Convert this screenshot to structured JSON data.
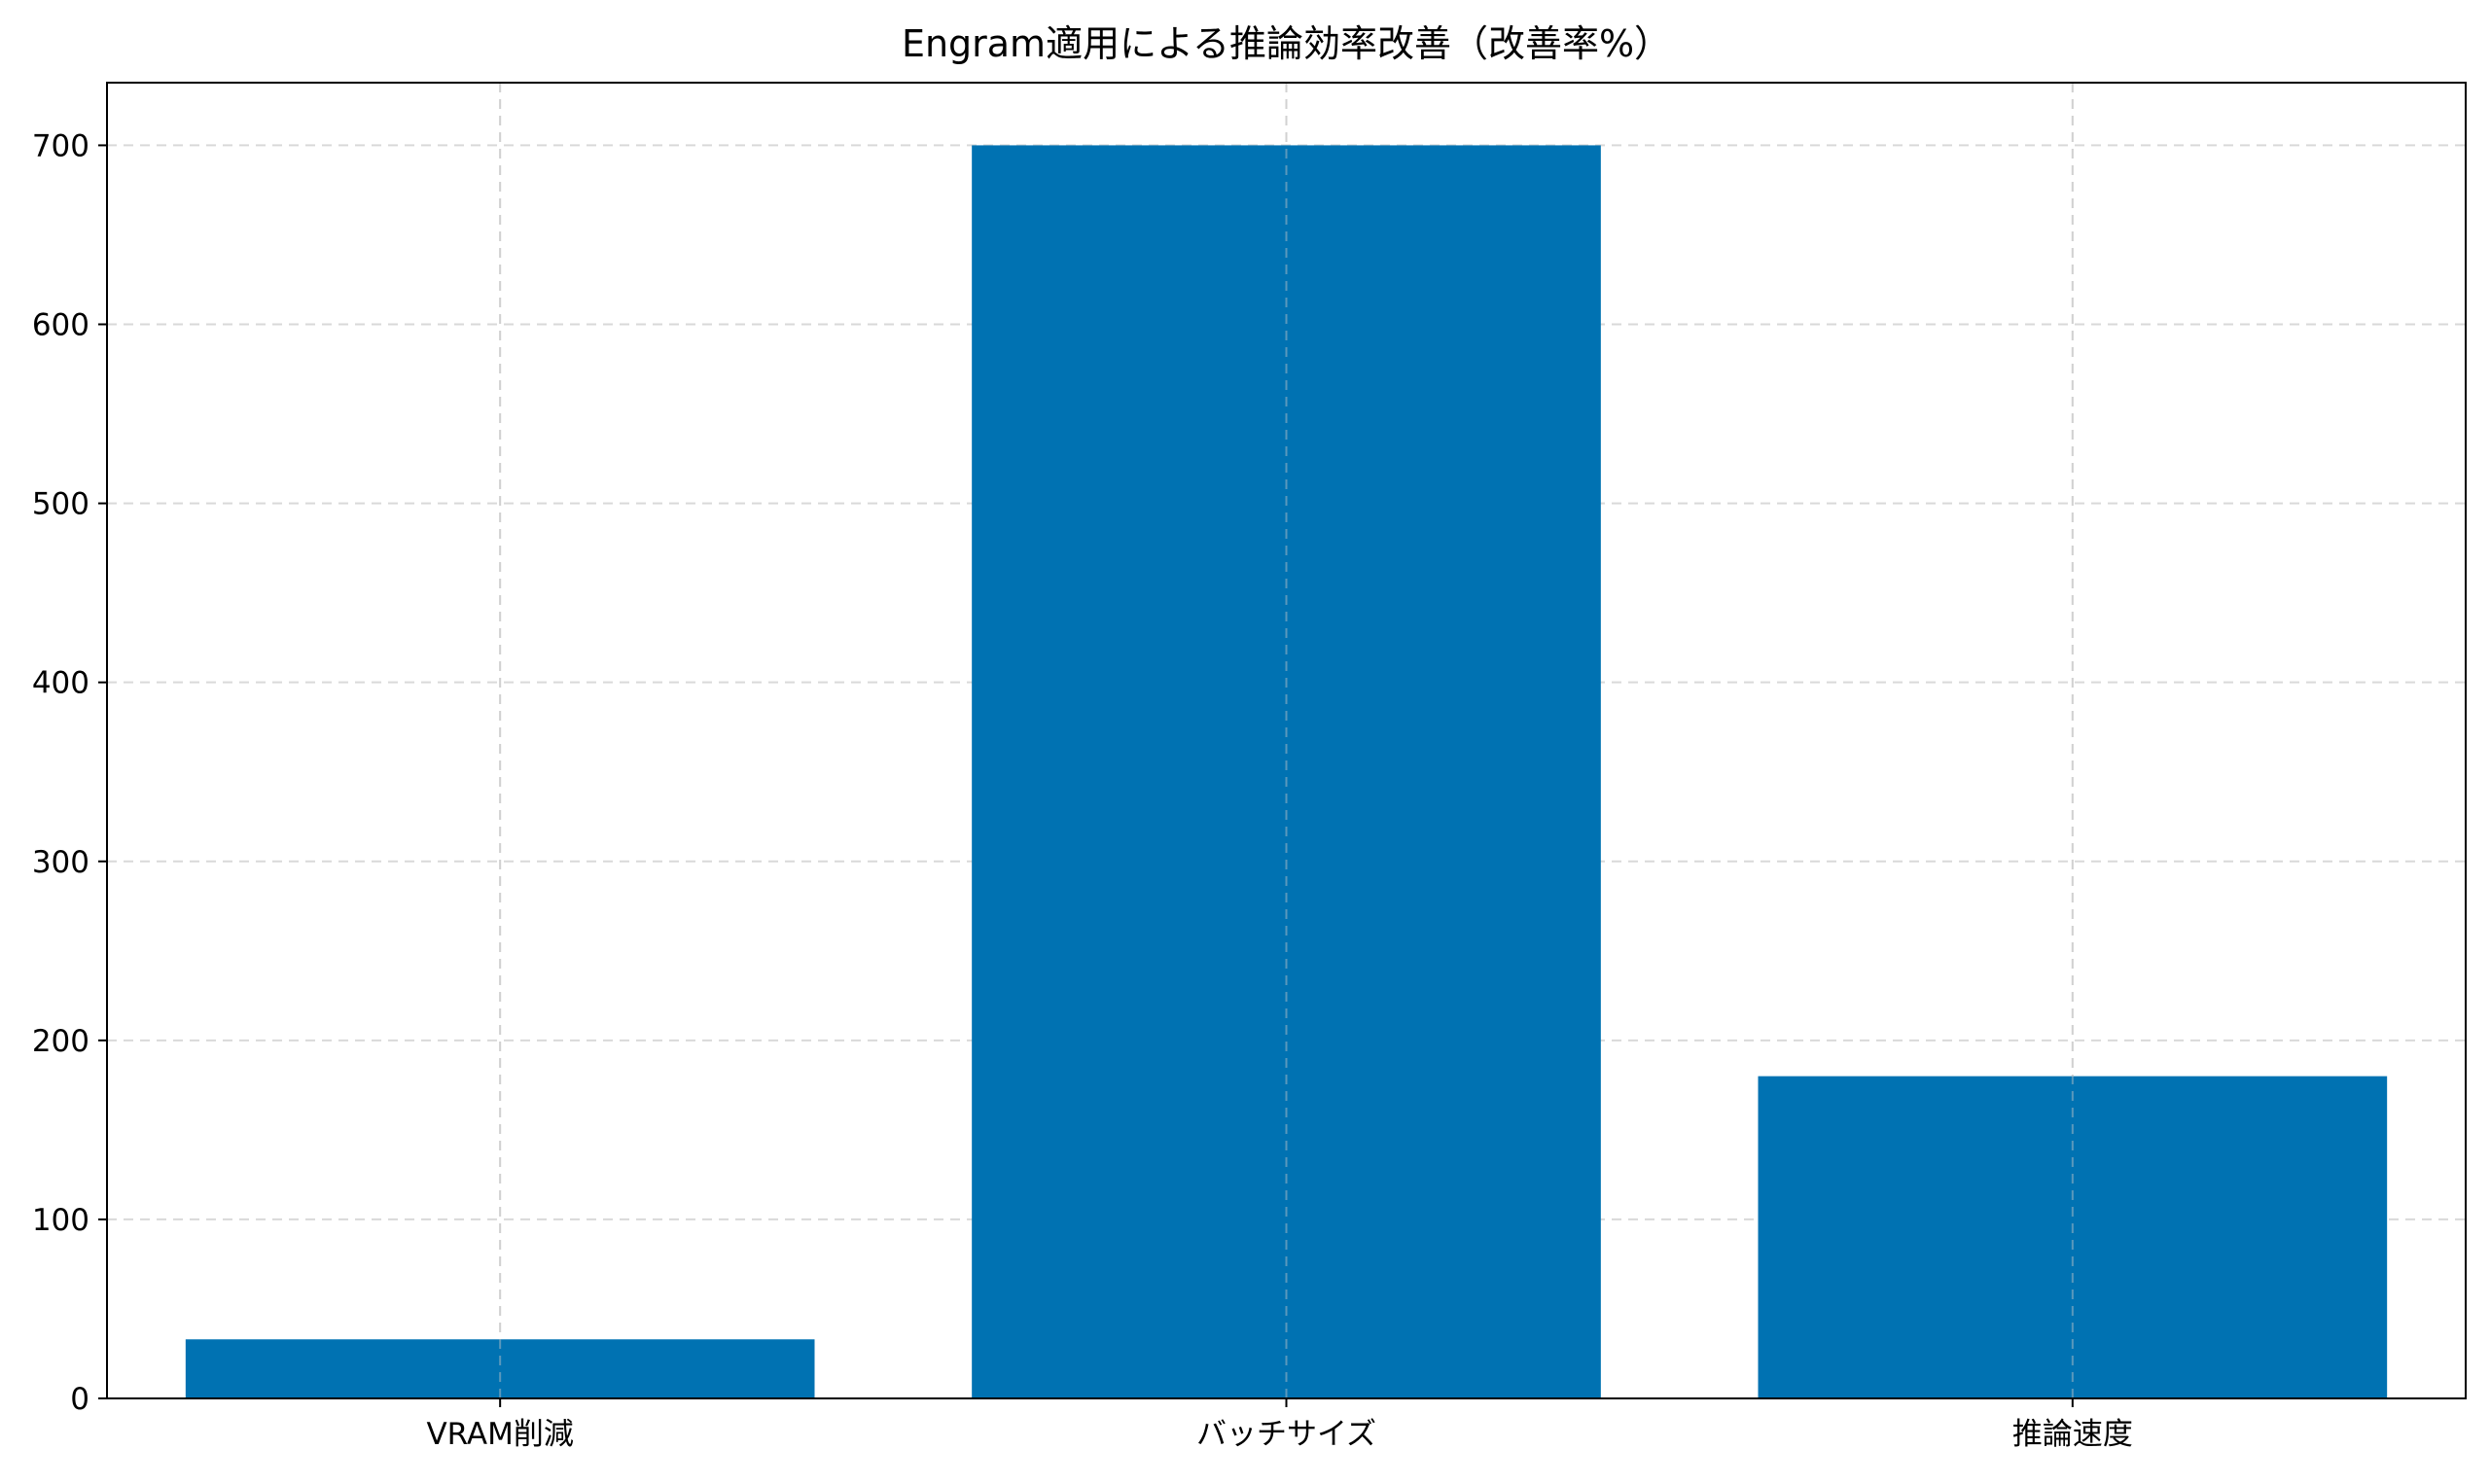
{
  "chart_data": {
    "type": "bar",
    "title": "Engram適用による推論効率改善（改善率%）",
    "xlabel": "",
    "ylabel": "",
    "categories": [
      "VRAM削減",
      "バッチサイズ",
      "推論速度"
    ],
    "values": [
      33,
      700,
      180
    ],
    "ylim": [
      0,
      735
    ],
    "yticks": [
      0,
      100,
      200,
      300,
      400,
      500,
      600,
      700
    ],
    "grid": true,
    "bar_color": "#0072b2"
  }
}
